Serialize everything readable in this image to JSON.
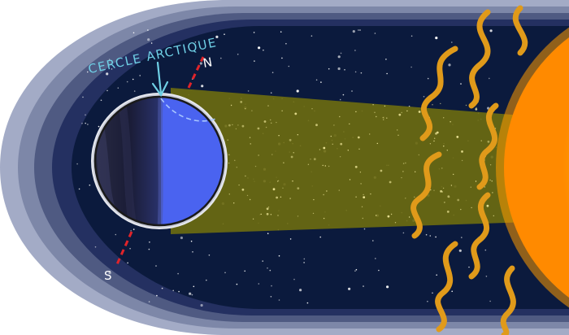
{
  "labels": {
    "arctic_circle": "CERCLE ARCTIQUE",
    "north": "N",
    "south": "S"
  },
  "colors": {
    "space": "#0b1a3d",
    "halo_outer": "#9aa3bf",
    "halo_mid": "#6b7596",
    "halo_inner": "#34406a",
    "sunlight_beam": "#6b6a10",
    "earth_day": "#4a63f0",
    "earth_night": "#1d1f3a",
    "axis": "#e0242a",
    "label": "#6fd0e6",
    "sun_core": "#ffd21f",
    "sun_edge": "#ff8a00",
    "flares": "#e09a1a"
  }
}
